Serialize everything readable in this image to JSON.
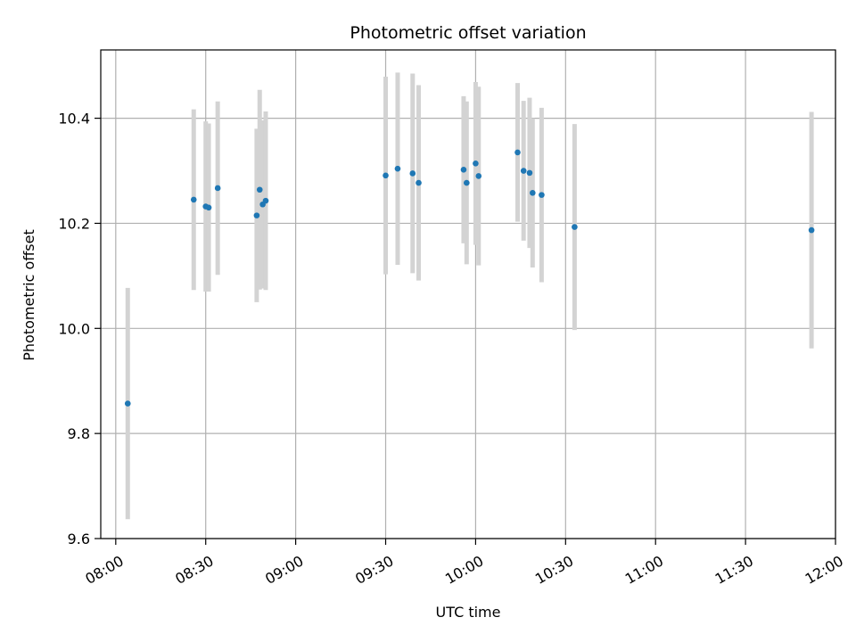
{
  "chart_data": {
    "type": "scatter",
    "title": "Photometric offset variation",
    "xlabel": "UTC time",
    "ylabel": "Photometric offset",
    "x_ticks": [
      "08:00",
      "08:30",
      "09:00",
      "09:30",
      "10:00",
      "10:30",
      "11:00",
      "11:30",
      "12:00"
    ],
    "y_ticks": [
      "9.6",
      "9.8",
      "10.0",
      "10.2",
      "10.4"
    ],
    "xlim": [
      "07:55",
      "12:00"
    ],
    "ylim": [
      9.6,
      10.53
    ],
    "grid": true,
    "legend": "none",
    "marker_color": "#1f77b4",
    "errorbar_color": "#d3d3d3",
    "points": [
      {
        "x": "08:04",
        "y": 9.857,
        "yerr": 0.22
      },
      {
        "x": "08:26",
        "y": 10.245,
        "yerr": 0.172
      },
      {
        "x": "08:30",
        "y": 10.232,
        "yerr": 0.162
      },
      {
        "x": "08:31",
        "y": 10.23,
        "yerr": 0.16
      },
      {
        "x": "08:34",
        "y": 10.267,
        "yerr": 0.165
      },
      {
        "x": "08:47",
        "y": 10.215,
        "yerr": 0.165
      },
      {
        "x": "08:48",
        "y": 10.264,
        "yerr": 0.19
      },
      {
        "x": "08:49",
        "y": 10.236,
        "yerr": 0.16
      },
      {
        "x": "08:50",
        "y": 10.243,
        "yerr": 0.17
      },
      {
        "x": "09:30",
        "y": 10.291,
        "yerr": 0.188
      },
      {
        "x": "09:34",
        "y": 10.304,
        "yerr": 0.183
      },
      {
        "x": "09:39",
        "y": 10.295,
        "yerr": 0.19
      },
      {
        "x": "09:41",
        "y": 10.277,
        "yerr": 0.186
      },
      {
        "x": "09:56",
        "y": 10.302,
        "yerr": 0.14
      },
      {
        "x": "09:57",
        "y": 10.277,
        "yerr": 0.155
      },
      {
        "x": "10:00",
        "y": 10.314,
        "yerr": 0.155
      },
      {
        "x": "10:01",
        "y": 10.29,
        "yerr": 0.17
      },
      {
        "x": "10:14",
        "y": 10.335,
        "yerr": 0.132
      },
      {
        "x": "10:16",
        "y": 10.3,
        "yerr": 0.133
      },
      {
        "x": "10:18",
        "y": 10.296,
        "yerr": 0.143
      },
      {
        "x": "10:19",
        "y": 10.258,
        "yerr": 0.142
      },
      {
        "x": "10:22",
        "y": 10.254,
        "yerr": 0.166
      },
      {
        "x": "10:33",
        "y": 10.193,
        "yerr": 0.196
      },
      {
        "x": "11:52",
        "y": 10.187,
        "yerr": 0.225
      }
    ]
  }
}
